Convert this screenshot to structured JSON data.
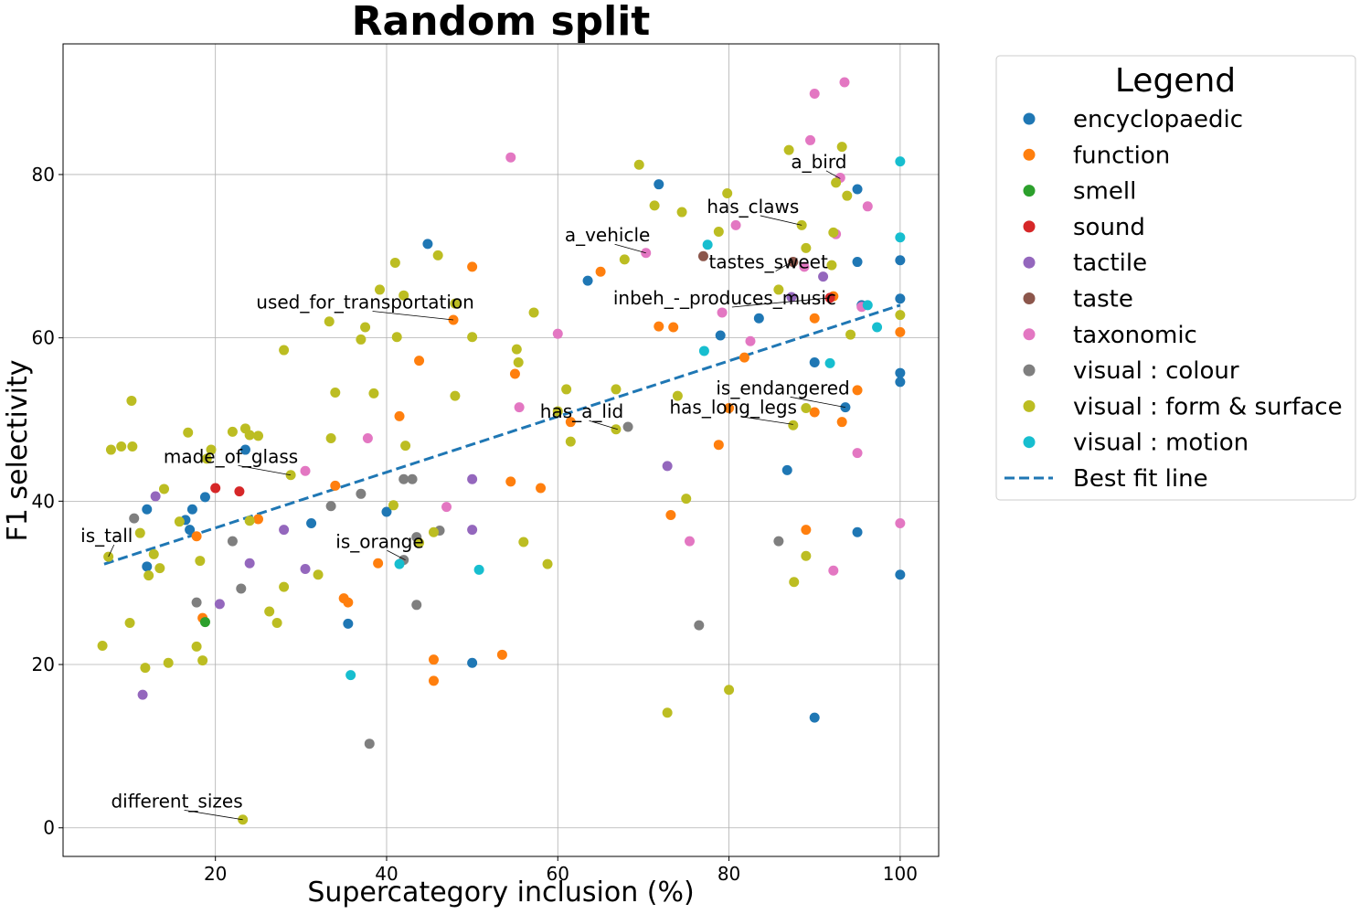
{
  "chart_data": {
    "type": "scatter",
    "title": "Random split",
    "xlabel": "Supercategory inclusion (%)",
    "ylabel": "F1 selectivity",
    "xlim": [
      2.2,
      104.5
    ],
    "ylim": [
      -3.5,
      96
    ],
    "xticks": [
      20,
      40,
      60,
      80,
      100
    ],
    "yticks": [
      0,
      20,
      40,
      60,
      80
    ],
    "grid": true,
    "legend": {
      "title": "Legend",
      "placement": "outside right"
    },
    "best_fit": {
      "name": "Best fit line",
      "color": "#1f77b4",
      "x": [
        7,
        100
      ],
      "y": [
        32.3,
        64
      ]
    },
    "series": [
      {
        "name": "encyclopaedic",
        "color": "#1f77b4",
        "points": [
          [
            12,
            39
          ],
          [
            12,
            32
          ],
          [
            16.5,
            37.7
          ],
          [
            17,
            36.5
          ],
          [
            17.3,
            39
          ],
          [
            18.8,
            40.5
          ],
          [
            23.5,
            46.3
          ],
          [
            31.2,
            37.3
          ],
          [
            35.5,
            25
          ],
          [
            40,
            38.7
          ],
          [
            44.8,
            71.5
          ],
          [
            50,
            20.2
          ],
          [
            63.5,
            67
          ],
          [
            71.8,
            78.8
          ],
          [
            79,
            60.3
          ],
          [
            83.5,
            62.4
          ],
          [
            86.8,
            43.8
          ],
          [
            90,
            57
          ],
          [
            90,
            13.5
          ],
          [
            93.6,
            51.5
          ],
          [
            95,
            78.2
          ],
          [
            95,
            69.3
          ],
          [
            95,
            36.2
          ],
          [
            95.5,
            64
          ],
          [
            100,
            69.5
          ],
          [
            100,
            64.8
          ],
          [
            100,
            55.7
          ],
          [
            100,
            54.6
          ],
          [
            100,
            31
          ]
        ]
      },
      {
        "name": "function",
        "color": "#ff7f0e",
        "points": [
          [
            17.8,
            35.7
          ],
          [
            18.5,
            25.7
          ],
          [
            25,
            37.8
          ],
          [
            34,
            41.9
          ],
          [
            35,
            28.1
          ],
          [
            35.5,
            27.6
          ],
          [
            39,
            32.4
          ],
          [
            41.5,
            50.4
          ],
          [
            43.8,
            57.2
          ],
          [
            45.5,
            20.6
          ],
          [
            45.5,
            18
          ],
          [
            47.8,
            62.2
          ],
          [
            50,
            68.7
          ],
          [
            53.5,
            21.2
          ],
          [
            54.5,
            42.4
          ],
          [
            55,
            55.6
          ],
          [
            58,
            41.6
          ],
          [
            61.5,
            49.7
          ],
          [
            65,
            68.1
          ],
          [
            71.8,
            61.4
          ],
          [
            73.2,
            38.3
          ],
          [
            73.5,
            61.3
          ],
          [
            78.8,
            46.9
          ],
          [
            80,
            51.4
          ],
          [
            81.8,
            57.6
          ],
          [
            89,
            36.5
          ],
          [
            90,
            62.4
          ],
          [
            90,
            50.9
          ],
          [
            92.2,
            65.1
          ],
          [
            93.2,
            49.7
          ],
          [
            95,
            53.6
          ],
          [
            100,
            60.7
          ]
        ]
      },
      {
        "name": "smell",
        "color": "#2ca02c",
        "points": [
          [
            18.8,
            25.2
          ]
        ]
      },
      {
        "name": "sound",
        "color": "#d62728",
        "points": [
          [
            20,
            41.6
          ],
          [
            22.8,
            41.2
          ],
          [
            91.8,
            64.9
          ]
        ]
      },
      {
        "name": "tactile",
        "color": "#9467bd",
        "points": [
          [
            11.5,
            16.3
          ],
          [
            13,
            40.6
          ],
          [
            20.5,
            27.4
          ],
          [
            24,
            32.4
          ],
          [
            28,
            36.5
          ],
          [
            30.5,
            31.7
          ],
          [
            50,
            42.7
          ],
          [
            50,
            36.5
          ],
          [
            72.8,
            44.3
          ],
          [
            87.3,
            65
          ],
          [
            91,
            67.5
          ]
        ]
      },
      {
        "name": "taste",
        "color": "#8c564b",
        "points": [
          [
            77,
            70
          ],
          [
            87.5,
            69.3
          ]
        ]
      },
      {
        "name": "taxonomic",
        "color": "#e377c2",
        "points": [
          [
            30.5,
            43.7
          ],
          [
            37.8,
            47.7
          ],
          [
            47,
            39.3
          ],
          [
            54.5,
            82.1
          ],
          [
            55.5,
            51.5
          ],
          [
            60,
            60.5
          ],
          [
            70.3,
            70.4
          ],
          [
            75.4,
            35.1
          ],
          [
            79.2,
            63.1
          ],
          [
            80.8,
            73.8
          ],
          [
            82.5,
            59.6
          ],
          [
            88.8,
            68.7
          ],
          [
            89.5,
            84.2
          ],
          [
            90,
            89.9
          ],
          [
            92.2,
            31.5
          ],
          [
            92.5,
            72.7
          ],
          [
            93,
            79.6
          ],
          [
            93.5,
            91.3
          ],
          [
            95,
            45.9
          ],
          [
            95.5,
            63.8
          ],
          [
            96.2,
            76.1
          ],
          [
            100,
            37.3
          ]
        ]
      },
      {
        "name": "visual : colour",
        "color": "#7f7f7f",
        "points": [
          [
            10.5,
            37.9
          ],
          [
            17.8,
            27.6
          ],
          [
            22,
            35.1
          ],
          [
            23,
            29.3
          ],
          [
            33.5,
            39.4
          ],
          [
            37,
            40.9
          ],
          [
            38,
            10.3
          ],
          [
            42,
            42.7
          ],
          [
            42,
            32.8
          ],
          [
            43,
            42.7
          ],
          [
            43.5,
            35.6
          ],
          [
            43.5,
            27.3
          ],
          [
            46.2,
            36.4
          ],
          [
            68.2,
            49.1
          ],
          [
            76.5,
            24.8
          ],
          [
            85.8,
            35.1
          ]
        ]
      },
      {
        "name": "visual : form & surface",
        "color": "#bcbd22",
        "points": [
          [
            6.8,
            22.3
          ],
          [
            7.5,
            33.2
          ],
          [
            7.8,
            46.3
          ],
          [
            9,
            46.7
          ],
          [
            10,
            25.1
          ],
          [
            10.2,
            52.3
          ],
          [
            10.3,
            46.7
          ],
          [
            11.2,
            36.1
          ],
          [
            11.8,
            19.6
          ],
          [
            12.2,
            30.9
          ],
          [
            12.8,
            33.5
          ],
          [
            13.5,
            31.8
          ],
          [
            14,
            41.5
          ],
          [
            14.5,
            20.2
          ],
          [
            15.8,
            37.5
          ],
          [
            16.8,
            48.4
          ],
          [
            17.8,
            22.2
          ],
          [
            18.2,
            32.7
          ],
          [
            18.5,
            20.5
          ],
          [
            19,
            45.2
          ],
          [
            19.5,
            46.3
          ],
          [
            22,
            48.5
          ],
          [
            23.5,
            48.9
          ],
          [
            24,
            48.1
          ],
          [
            24,
            37.6
          ],
          [
            25,
            48
          ],
          [
            26.3,
            26.5
          ],
          [
            27.2,
            25.1
          ],
          [
            28,
            58.5
          ],
          [
            28,
            29.5
          ],
          [
            28.8,
            43.2
          ],
          [
            32,
            31
          ],
          [
            33.3,
            62
          ],
          [
            33.5,
            47.7
          ],
          [
            34,
            53.3
          ],
          [
            37,
            59.8
          ],
          [
            37.5,
            61.3
          ],
          [
            38.5,
            53.2
          ],
          [
            39.2,
            65.9
          ],
          [
            40.8,
            39.5
          ],
          [
            41,
            69.2
          ],
          [
            41.2,
            60.1
          ],
          [
            42,
            65.2
          ],
          [
            42.2,
            46.8
          ],
          [
            43.8,
            34.9
          ],
          [
            45.5,
            36.2
          ],
          [
            46,
            70.1
          ],
          [
            48,
            52.9
          ],
          [
            48,
            64.2
          ],
          [
            50,
            60.1
          ],
          [
            55.2,
            58.6
          ],
          [
            55.4,
            57
          ],
          [
            56,
            35
          ],
          [
            57.2,
            63.1
          ],
          [
            58.8,
            32.3
          ],
          [
            60,
            51
          ],
          [
            61,
            53.7
          ],
          [
            61.5,
            47.3
          ],
          [
            66.8,
            53.7
          ],
          [
            66.8,
            48.8
          ],
          [
            67.8,
            69.6
          ],
          [
            69.5,
            81.2
          ],
          [
            71.3,
            76.2
          ],
          [
            72.8,
            14.1
          ],
          [
            74,
            52.9
          ],
          [
            74.5,
            75.4
          ],
          [
            75,
            40.3
          ],
          [
            78.8,
            73
          ],
          [
            79.8,
            77.7
          ],
          [
            80,
            16.9
          ],
          [
            85.8,
            65.9
          ],
          [
            87,
            83
          ],
          [
            87.5,
            49.3
          ],
          [
            87.6,
            30.1
          ],
          [
            88.5,
            73.8
          ],
          [
            89,
            51.4
          ],
          [
            89,
            33.3
          ],
          [
            89,
            71
          ],
          [
            92,
            68.9
          ],
          [
            92.2,
            72.9
          ],
          [
            92.5,
            79
          ],
          [
            93.2,
            83.4
          ],
          [
            93.8,
            77.4
          ],
          [
            94.2,
            60.4
          ],
          [
            100,
            62.8
          ],
          [
            23.2,
            1
          ]
        ]
      },
      {
        "name": "visual : motion",
        "color": "#17becf",
        "points": [
          [
            35.8,
            18.7
          ],
          [
            41.5,
            32.3
          ],
          [
            50.8,
            31.6
          ],
          [
            77.1,
            58.4
          ],
          [
            77.5,
            71.4
          ],
          [
            91.8,
            56.9
          ],
          [
            96.2,
            64
          ],
          [
            97.3,
            61.3
          ],
          [
            100,
            81.6
          ],
          [
            100,
            72.3
          ]
        ]
      }
    ],
    "annotations": [
      {
        "text": "a_bird",
        "target": [
          93,
          79.5
        ],
        "text_at": [
          90.5,
          80.8
        ]
      },
      {
        "text": "has_claws",
        "target": [
          88.5,
          73.8
        ],
        "text_at": [
          82.8,
          75.3
        ]
      },
      {
        "text": "a_vehicle",
        "target": [
          70.3,
          70.4
        ],
        "text_at": [
          65.8,
          71.8
        ]
      },
      {
        "text": "tastes_sweet",
        "target": [
          87.5,
          69.4
        ],
        "text_at": [
          84.6,
          68.5
        ]
      },
      {
        "text": "inbeh_-_produces_music",
        "target": [
          91.8,
          64.9
        ],
        "text_at": [
          79.5,
          64.1
        ]
      },
      {
        "text": "used_for_transportation",
        "target": [
          47.8,
          62.2
        ],
        "text_at": [
          37.5,
          63.6
        ]
      },
      {
        "text": "is_endangered",
        "target": [
          93.6,
          51.5
        ],
        "text_at": [
          86.3,
          53.1
        ]
      },
      {
        "text": "has_long_legs",
        "target": [
          87.5,
          49.4
        ],
        "text_at": [
          80.5,
          50.7
        ]
      },
      {
        "text": "has_a_lid",
        "target": [
          67,
          48.8
        ],
        "text_at": [
          62.8,
          50.2
        ]
      },
      {
        "text": "made_of_glass",
        "target": [
          28.8,
          43.2
        ],
        "text_at": [
          21.8,
          44.7
        ]
      },
      {
        "text": "is_tall",
        "target": [
          7.5,
          33.2
        ],
        "text_at": [
          7.3,
          35
        ]
      },
      {
        "text": "is_orange",
        "target": [
          42.2,
          32.8
        ],
        "text_at": [
          39.2,
          34.3
        ]
      },
      {
        "text": "different_sizes",
        "target": [
          23.2,
          1.0
        ],
        "text_at": [
          15.5,
          2.5
        ]
      }
    ]
  }
}
